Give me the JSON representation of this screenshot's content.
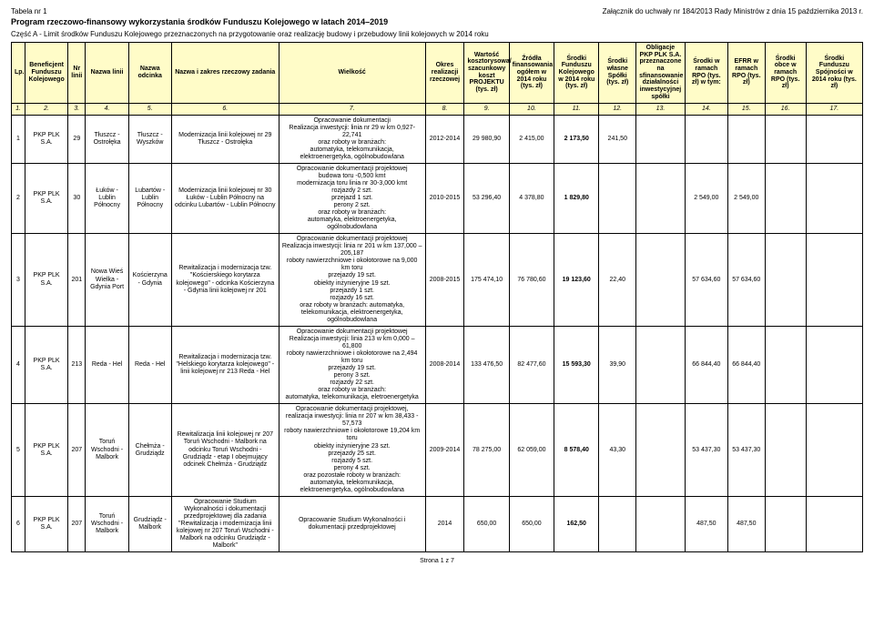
{
  "header": {
    "table_label": "Tabela nr 1",
    "attachment": "Załącznik do uchwały nr 184/2013 Rady Ministrów z dnia 15 października 2013 r.",
    "title": "Program rzeczowo-finansowy wykorzystania środków Funduszu Kolejowego w latach 2014–2019",
    "part": "Część A - Limit środków Funduszu Kolejowego przeznaczonych na przygotowanie oraz realizację budowy i przebudowy linii kolejowych w 2014 roku"
  },
  "columns": [
    "Lp.",
    "Beneficjent Funduszu Kolejowego",
    "Nr linii",
    "Nazwa linii",
    "Nazwa odcinka",
    "Nazwa i zakres rzeczowy zadania",
    "Wielkość",
    "Okres realizacji rzeczowej",
    "Wartość kosztorysowa/ szacunkowy koszt PROJEKTU (tys. zł)",
    "Źródła finansowania ogółem w 2014 roku (tys. zł)",
    "Środki Funduszu Kolejowego w 2014 roku (tys. zł)",
    "Środki własne Spółki (tys. zł)",
    "Obligacje PKP PLK S.A. przeznaczone na sfinansowanie działalności inwestycyjnej spółki",
    "Środki w ramach RPO (tys. zł) w tym:",
    "EFRR w ramach RPO (tys. zł)",
    "Środki obce w ramach RPO (tys. zł)",
    "Środki Funduszu Spójności w 2014 roku (tys. zł)"
  ],
  "colnums": [
    "1.",
    "2.",
    "3.",
    "4.",
    "5.",
    "6.",
    "7.",
    "8.",
    "9.",
    "10.",
    "11.",
    "12.",
    "13.",
    "14.",
    "15.",
    "16.",
    "17."
  ],
  "rows": [
    {
      "lp": "1",
      "benef": "PKP PLK S.A.",
      "nr": "29",
      "linia": "Tłuszcz - Ostrołęka",
      "odcinek": "Tłuszcz - Wyszków",
      "zadanie": "Modernizacja linii kolejowej nr 29 Tłuszcz - Ostrołęka",
      "wielkosc": "Opracowanie dokumentacji\nRealizacja inwestycji: linia nr 29 w km 0,927-22,741\noraz roboty w branżach:\nautomatyka, telekomunikacja,\nelektroenergetyka, ogólnobudowlana",
      "okres": "2012-2014",
      "c9": "29 980,90",
      "c10": "2 415,00",
      "c11": "2 173,50",
      "c12": "241,50",
      "c13": "",
      "c14": "",
      "c15": "",
      "c16": "",
      "c17": ""
    },
    {
      "lp": "2",
      "benef": "PKP PLK S.A.",
      "nr": "30",
      "linia": "Łuków - Lublin Północny",
      "odcinek": "Lubartów - Lublin Północny",
      "zadanie": "Modernizacja linii kolejowej nr 30 Łuków - Lublin Północny na odcinku Lubartów - Lublin Północny",
      "wielkosc": "Opracowanie dokumentacji projektowej\nbudowa toru -0,500 kmt\nmodernizacja toru linia nr 30-3,000 kmt\nrozjazdy 2 szt.\nprzejazd 1 szt.\nperony 2 szt.\noraz roboty w branżach:\nautomatyka, elektroenergetyka,\nogólnobudowlana",
      "okres": "2010-2015",
      "c9": "53 296,40",
      "c10": "4 378,80",
      "c11": "1 829,80",
      "c12": "",
      "c13": "",
      "c14": "2 549,00",
      "c15": "2 549,00",
      "c16": "",
      "c17": ""
    },
    {
      "lp": "3",
      "benef": "PKP PLK S.A.",
      "nr": "201",
      "linia": "Nowa Wieś Wielka - Gdynia Port",
      "odcinek": "Kościerzyna - Gdynia",
      "zadanie": "Rewitalizacja i modernizacja tzw. \"Kościerskiego korytarza kolejowego\" - odcinka Kościerzyna - Gdynia linii kolejowej nr 201",
      "wielkosc": "Opracowanie dokumentacji projektowej\nRealizacja inwestycji: linia nr 201 w km 137,000 – 205,187\nroboty nawierzchniowe i okołotorowe na 9,000 km toru\nprzejazdy 19 szt.\nobiekty inżynieryjne 19 szt.\nprzejazdy 1 szt.\nrozjazdy 16 szt.\noraz roboty w branżach: automatyka,\ntelekomunikacja, elektroenergetyka,\nogólnobudowlana",
      "okres": "2008-2015",
      "c9": "175 474,10",
      "c10": "76 780,60",
      "c11": "19 123,60",
      "c12": "22,40",
      "c13": "",
      "c14": "57 634,60",
      "c15": "57 634,60",
      "c16": "",
      "c17": ""
    },
    {
      "lp": "4",
      "benef": "PKP PLK S.A.",
      "nr": "213",
      "linia": "Reda - Hel",
      "odcinek": "Reda - Hel",
      "zadanie": "Rewitalizacja i modernizacja tzw. \"Helskiego korytarza kolejowego\" - linii kolejowej nr 213 Reda - Hel",
      "wielkosc": "Opracowanie dokumentacji projektowej\nRealizacja inwestycji: linia 213 w km 0,000 – 61,800\nroboty nawierzchniowe i okołotorowe na 2,494 km toru\nprzejazdy 19 szt.\nperony 3 szt.\nrozjazdy 22 szt.\noraz roboty w branżach:\nautomatyka, telekomunikacja, eletroenergetyka",
      "okres": "2008-2014",
      "c9": "133 476,50",
      "c10": "82 477,60",
      "c11": "15 593,30",
      "c12": "39,90",
      "c13": "",
      "c14": "66 844,40",
      "c15": "66 844,40",
      "c16": "",
      "c17": ""
    },
    {
      "lp": "5",
      "benef": "PKP PLK S.A.",
      "nr": "207",
      "linia": "Toruń Wschodni - Malbork",
      "odcinek": "Chełmża - Grudziądz",
      "zadanie": "Rewitalizacja linii kolejowej nr 207 Toruń Wschodni - Malbork na odcinku Toruń Wschodni - Grudziądz - etap I obejmujący odcinek Chełmża - Grudziądz",
      "wielkosc": "Opracowanie dokumentacji projektowej,\nrealizacja inwestycji: linia nr 207 w km 38,433 - 57,573\nroboty nawierzchniowe i okołotorowe 19,204 km toru\nobiekty inżynieryjne 23 szt.\nprzejazdy 25 szt.\nrozjazdy 5 szt.\nperony 4 szt.\noraz pozostałe roboty w branżach:\nautomatyka, telekomunikacja,\nelektroenergetyka, ogólnobudowlana",
      "okres": "2009-2014",
      "c9": "78 275,00",
      "c10": "62 059,00",
      "c11": "8 578,40",
      "c12": "43,30",
      "c13": "",
      "c14": "53 437,30",
      "c15": "53 437,30",
      "c16": "",
      "c17": ""
    },
    {
      "lp": "6",
      "benef": "PKP PLK S.A.",
      "nr": "207",
      "linia": "Toruń Wschodni - Malbork",
      "odcinek": "Grudziądz - Malbork",
      "zadanie": "Opracowanie Studium Wykonalności i dokumentacji przedprojektowej dla zadania \"Rewitalizacja i modernizacja linii kolejowej nr 207 Toruń Wschodni - Malbork na odcinku Grudziądz - Malbork\"",
      "wielkosc": "Opracowanie Studium Wykonalności i dokumentacji przedprojektowej",
      "okres": "2014",
      "c9": "650,00",
      "c10": "650,00",
      "c11": "162,50",
      "c12": "",
      "c13": "",
      "c14": "487,50",
      "c15": "487,50",
      "c16": "",
      "c17": ""
    }
  ],
  "footer": "Strona 1 z 7"
}
